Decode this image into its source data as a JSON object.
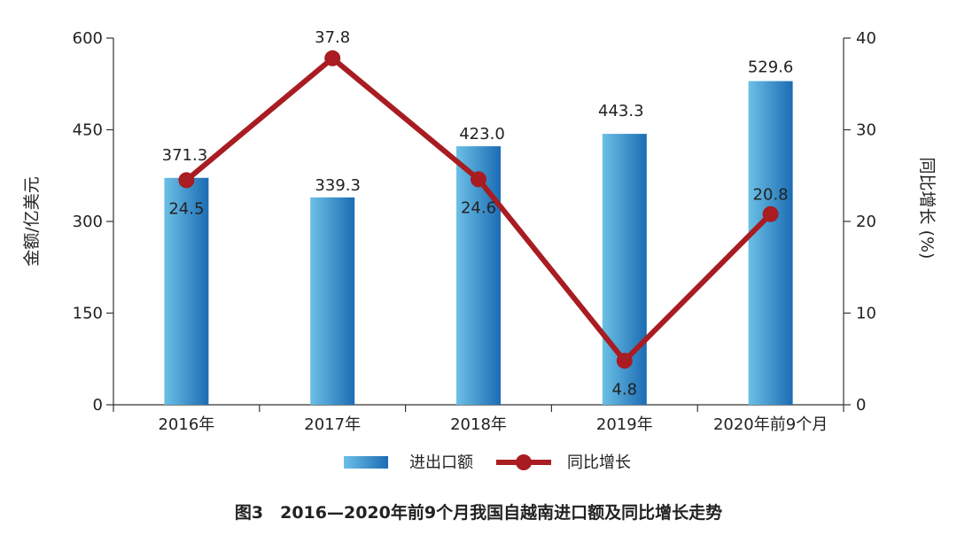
{
  "chart_data": {
    "type": "bar+line",
    "title": "图3　2016—2020年前9个月我国自越南进口额及同比增长走势",
    "categories": [
      "2016年",
      "2017年",
      "2018年",
      "2019年",
      "2020年前9个月"
    ],
    "series": [
      {
        "name": "进出口额",
        "type": "bar",
        "axis": "left",
        "values": [
          371.3,
          339.3,
          423.0,
          443.3,
          529.6
        ],
        "color": "#2a86c8"
      },
      {
        "name": "同比增长",
        "type": "line",
        "axis": "right",
        "values": [
          24.5,
          37.8,
          24.6,
          4.8,
          20.8
        ],
        "color": "#a81c22"
      }
    ],
    "bar_labels": [
      "371.3",
      "339.3",
      "423.0",
      "443.3",
      "529.6"
    ],
    "line_labels": [
      "24.5",
      "37.8",
      "24.6",
      "4.8",
      "20.8"
    ],
    "ylabel": "金额/亿美元",
    "y2label": "同比增长 (%)",
    "ylim": [
      0,
      600
    ],
    "y2lim": [
      0,
      40
    ],
    "yticks": [
      "0",
      "150",
      "300",
      "450",
      "600"
    ],
    "y2ticks": [
      "0",
      "10",
      "20",
      "30",
      "40"
    ],
    "grid": false,
    "legend": "bottom"
  }
}
